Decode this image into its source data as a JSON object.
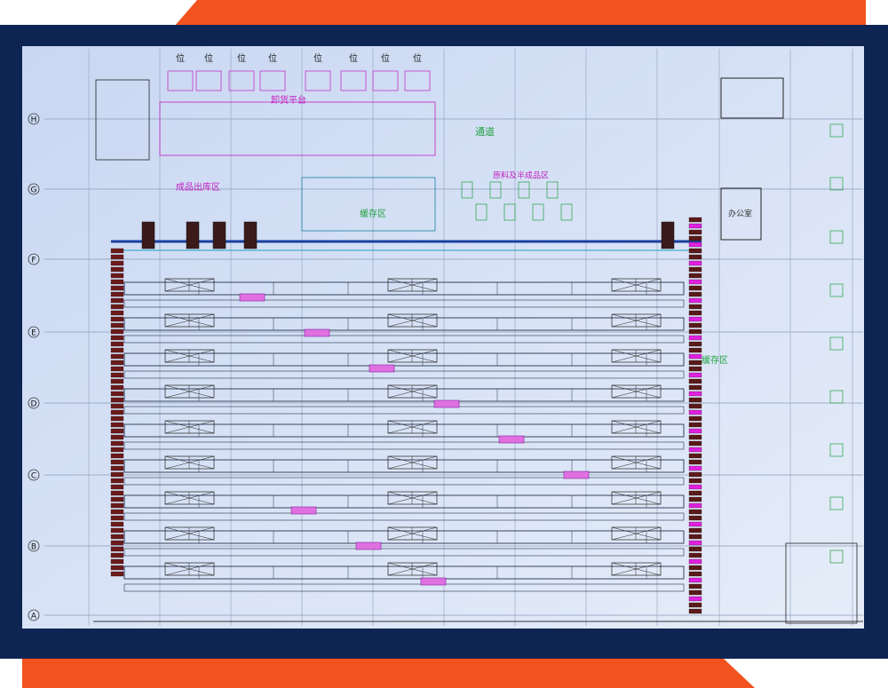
{
  "grid_rows": [
    "H",
    "G",
    "F",
    "E",
    "D",
    "C",
    "B",
    "A"
  ],
  "bays": [
    "位",
    "位",
    "位",
    "位",
    "位",
    "位",
    "位",
    "位"
  ],
  "areas": {
    "unloading": "卸货平台",
    "aisle": "通道",
    "outbound": "成品出库区",
    "buffer": "缓存区",
    "materials": "原料及半成品区",
    "office": "办公室",
    "buffer_right": "缓存区"
  }
}
